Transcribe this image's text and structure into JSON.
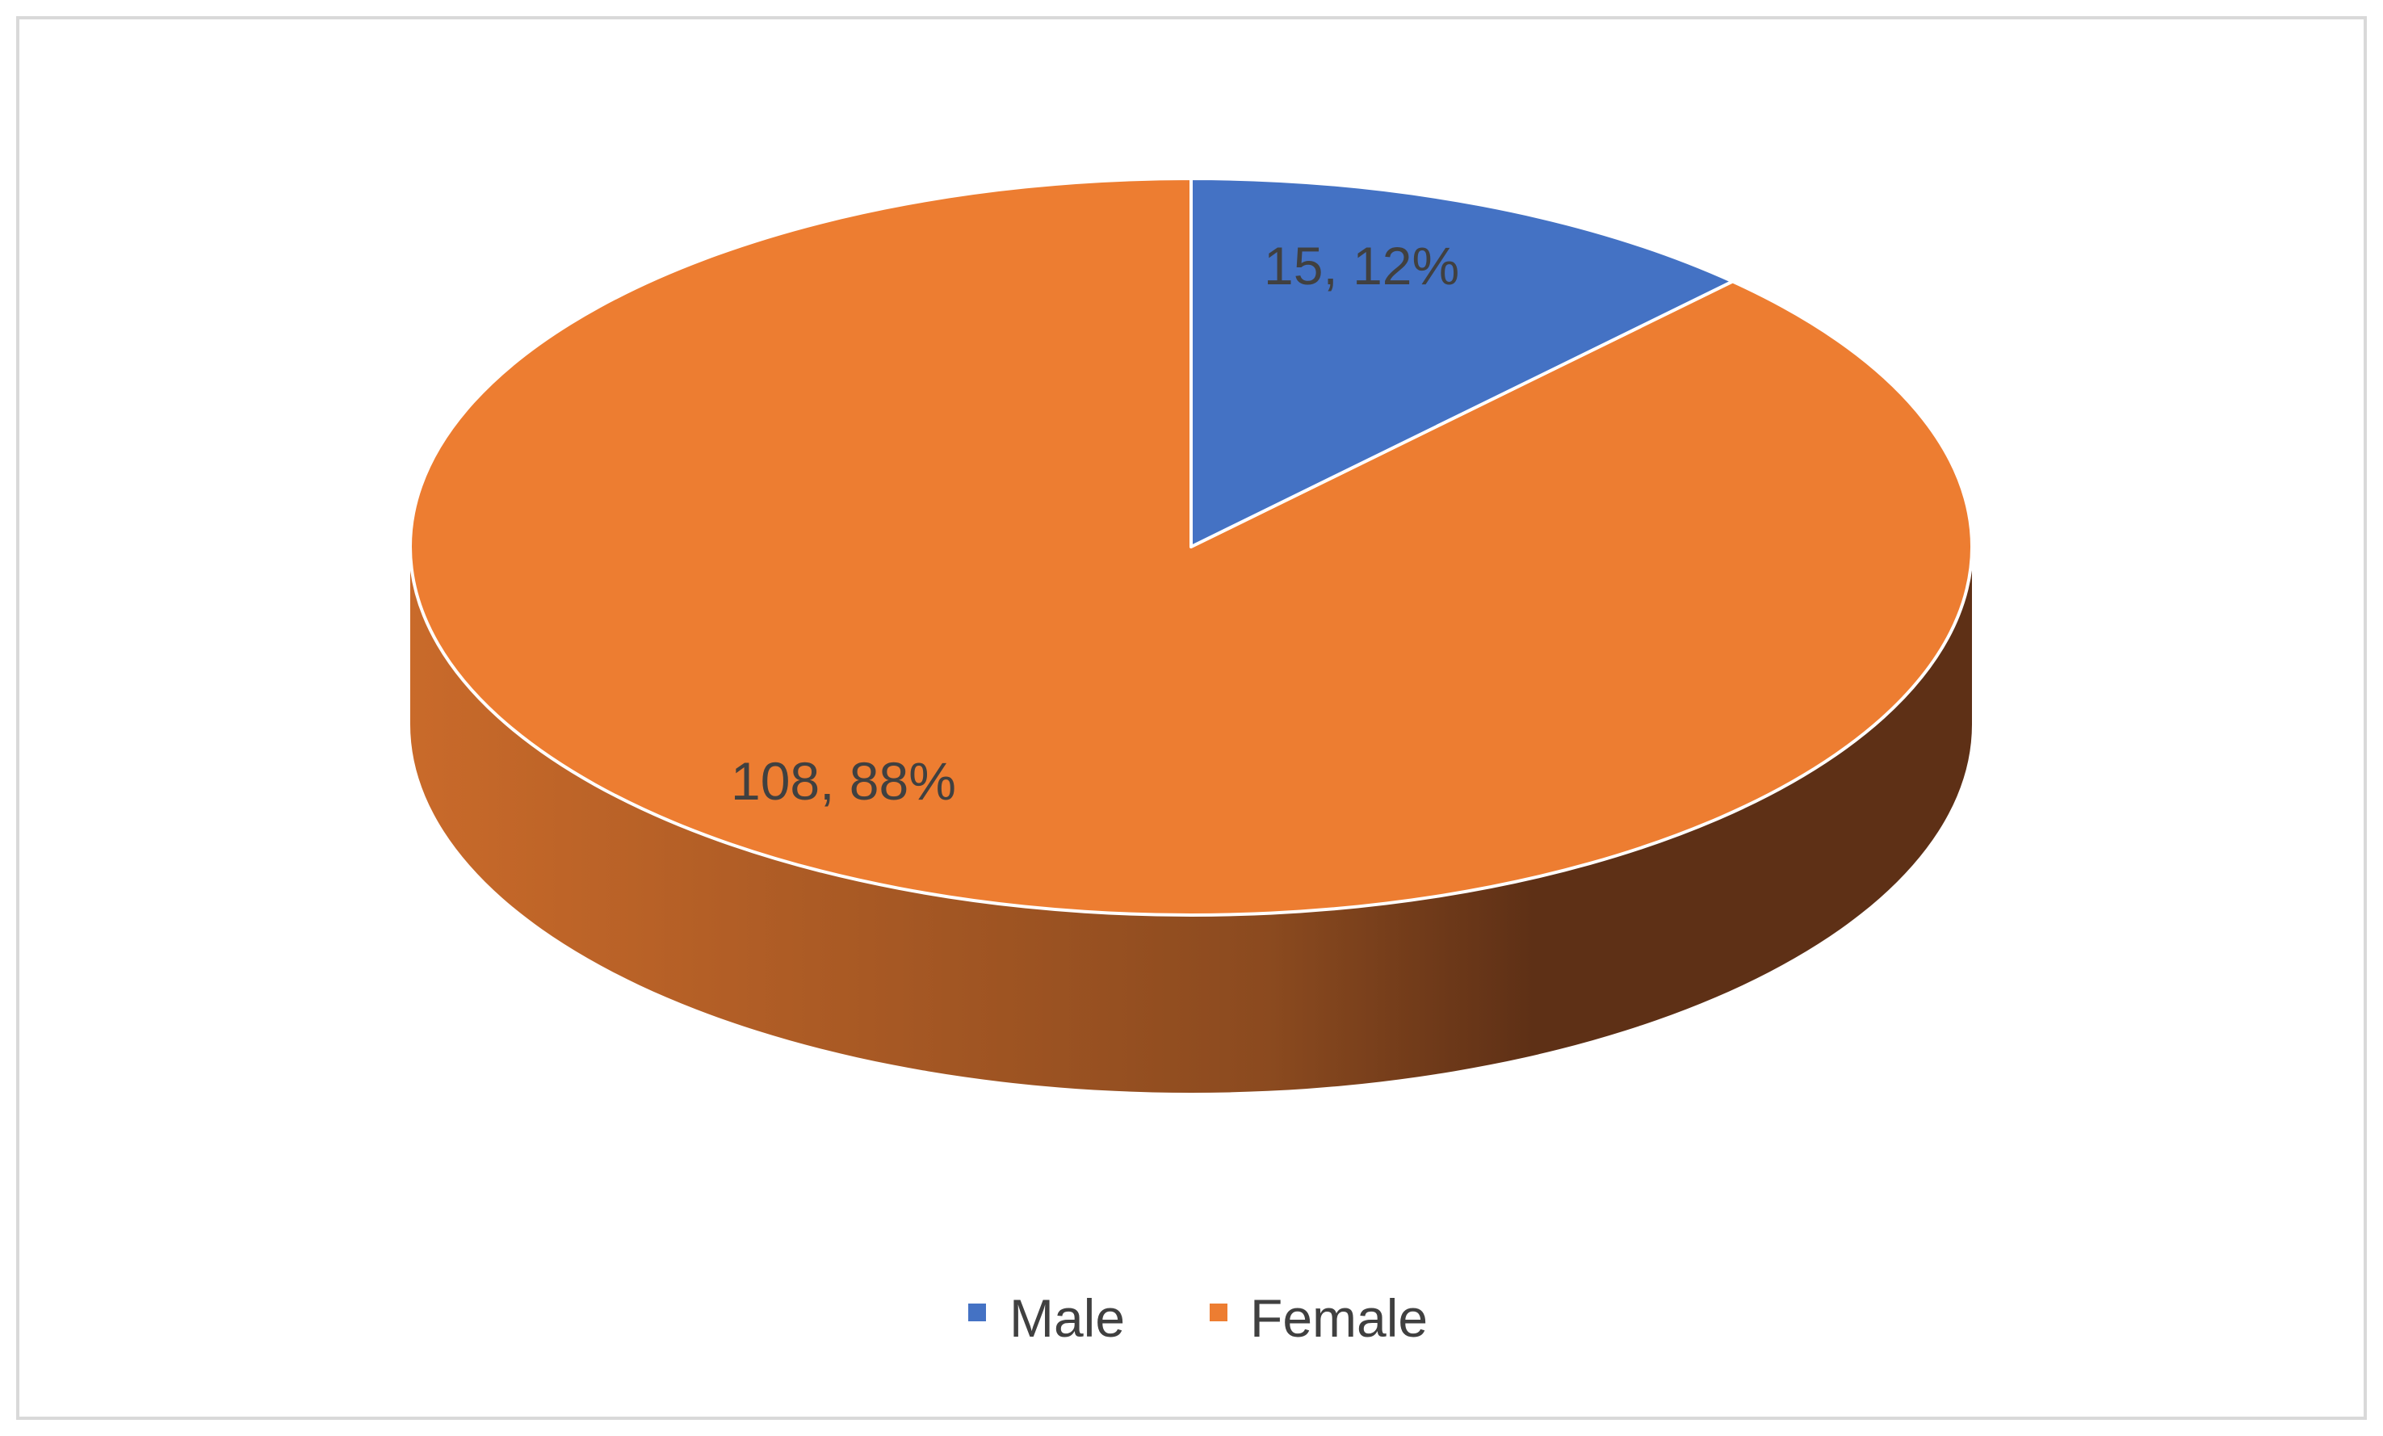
{
  "chart_data": {
    "type": "pie",
    "style": "3d",
    "title": "",
    "slices": [
      {
        "name": "Male",
        "value": 15,
        "percent": 12,
        "label": "15, 12%",
        "color": "#4472C4"
      },
      {
        "name": "Female",
        "value": 108,
        "percent": 88,
        "label": "108, 88%",
        "color": "#ED7D31"
      }
    ],
    "legend": {
      "position": "bottom",
      "items": [
        "Male",
        "Female"
      ]
    }
  },
  "colors": {
    "frame_border": "#D9D9D9",
    "slice_edge": "#FFFFFF",
    "side_light": "#C96A2A",
    "side_dark": "#5E3016",
    "label_text": "#404040"
  }
}
